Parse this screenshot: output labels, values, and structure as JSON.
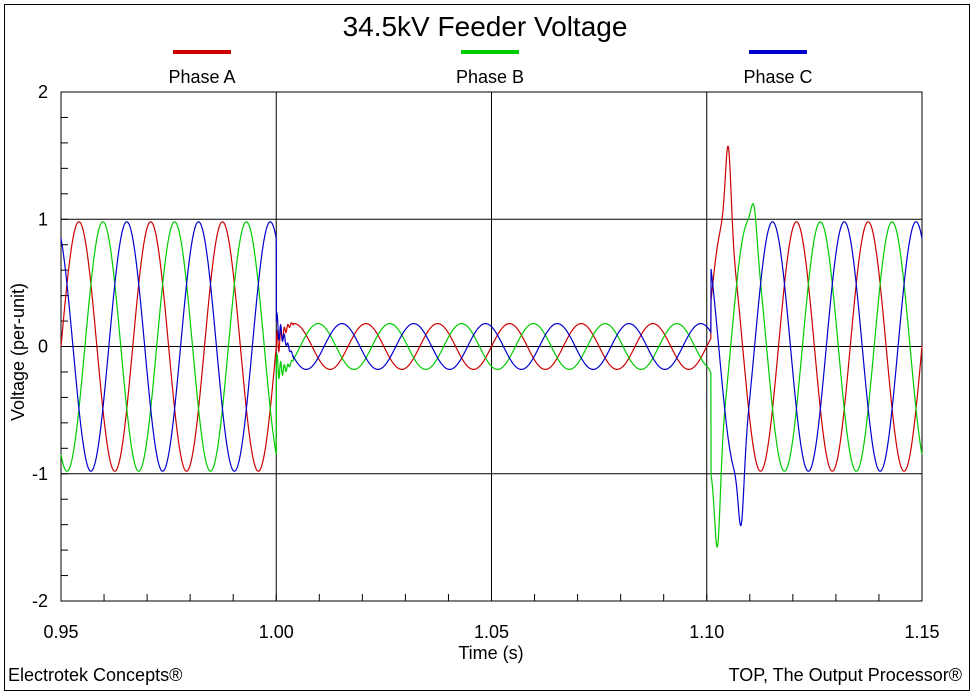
{
  "chart_data": {
    "type": "line",
    "title": "34.5kV Feeder Voltage",
    "xlabel": "Time (s)",
    "ylabel": "Voltage (per-unit)",
    "xlim": [
      0.95,
      1.15
    ],
    "ylim": [
      -2,
      2
    ],
    "x_ticks": [
      "0.95",
      "1.00",
      "1.05",
      "1.10",
      "1.15"
    ],
    "y_ticks": [
      "2",
      "1",
      "0",
      "-1",
      "-2"
    ],
    "grid": true,
    "legend_position": "top",
    "frequency_hz": 60,
    "series": [
      {
        "name": "Phase A",
        "color": "#cc0000",
        "phase_deg": 0,
        "segments": [
          {
            "t_start": 0.95,
            "t_end": 1.0,
            "amplitude": 0.98
          },
          {
            "t_start": 1.0,
            "t_end": 1.101,
            "amplitude": 0.18
          },
          {
            "t_start": 1.101,
            "t_end": 1.15,
            "amplitude": 0.98
          }
        ]
      },
      {
        "name": "Phase B",
        "color": "#00cc00",
        "phase_deg": -120,
        "segments": [
          {
            "t_start": 0.95,
            "t_end": 1.0,
            "amplitude": 0.98
          },
          {
            "t_start": 1.0,
            "t_end": 1.101,
            "amplitude": 0.18
          },
          {
            "t_start": 1.101,
            "t_end": 1.15,
            "amplitude": 0.98
          }
        ]
      },
      {
        "name": "Phase C",
        "color": "#0000cc",
        "phase_deg": 120,
        "segments": [
          {
            "t_start": 0.95,
            "t_end": 1.0,
            "amplitude": 0.98
          },
          {
            "t_start": 1.0,
            "t_end": 1.101,
            "amplitude": 0.18
          },
          {
            "t_start": 1.101,
            "t_end": 1.15,
            "amplitude": 0.98
          }
        ]
      }
    ],
    "transient_peaks": [
      {
        "series": "Phase A",
        "x": 1.105,
        "y": 1.57
      },
      {
        "series": "Phase B",
        "x": 1.1025,
        "y": -1.57
      },
      {
        "series": "Phase B",
        "x": 1.111,
        "y": 1.1
      },
      {
        "series": "Phase C",
        "x": 1.108,
        "y": -1.4
      }
    ]
  },
  "footer": {
    "left": "Electrotek Concepts®",
    "right": "TOP, The Output Processor®"
  }
}
